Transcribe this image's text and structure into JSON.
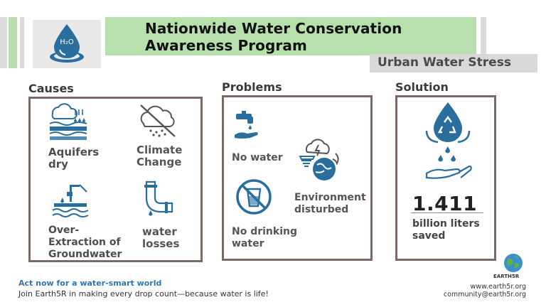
{
  "header": {
    "title_line1": "Nationwide Water Conservation",
    "title_line2": "Awareness Program",
    "subtitle": "Urban Water Stress",
    "logo_text": "H₂O"
  },
  "sections": {
    "causes": {
      "heading": "Causes",
      "items": [
        {
          "label_line1": "Aquifers",
          "label_line2": "dry",
          "icon": "aquifer-rain-icon"
        },
        {
          "label_line1": "Climate",
          "label_line2": "Change",
          "icon": "cloud-slash-icon"
        },
        {
          "label_line1": "Over-",
          "label_line2": "Extraction of",
          "label_line3": "Groundwater",
          "icon": "well-pump-icon"
        },
        {
          "label_line1": "water",
          "label_line2": "losses",
          "icon": "leaking-pipe-icon"
        }
      ]
    },
    "problems": {
      "heading": "Problems",
      "items": [
        {
          "label_line1": "No water",
          "icon": "tap-hand-icon"
        },
        {
          "label_line1": "Environment",
          "label_line2": "disturbed",
          "icon": "storm-earth-icon"
        },
        {
          "label_line1": "No drinking",
          "label_line2": "water",
          "icon": "no-glass-icon"
        }
      ]
    },
    "solution": {
      "heading": "Solution",
      "icon": "recycle-water-hand-icon",
      "value": "1.411",
      "label_line1": "billion liters",
      "label_line2": "saved"
    }
  },
  "footer": {
    "cta": "Act now for a water-smart world",
    "tagline": "Join Earth5R  in making every drop count—because water is life!",
    "brand": "EARTH5R",
    "website": "www.earth5r.org",
    "email": "community@earth5r.org"
  },
  "colors": {
    "accent_blue": "#2a6e9e",
    "title_green": "#b8e0ad",
    "box_border": "#7d6a66",
    "cta_blue": "#2f77b6"
  }
}
